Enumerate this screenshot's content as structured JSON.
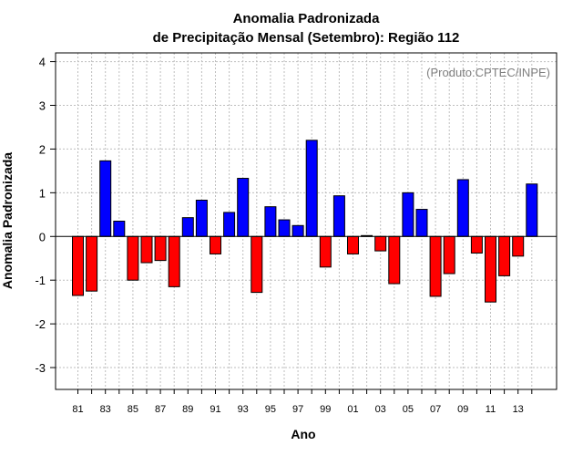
{
  "chart_data": {
    "type": "bar",
    "title": [
      "Anomalia Padronizada",
      "de Precipitação Mensal (Setembro): Região 112"
    ],
    "xlabel": "Ano",
    "ylabel": "Anomalia Padronizada",
    "credit": "(Produto:CPTEC/INPE)",
    "ylim": [
      -3.5,
      4.2
    ],
    "yticks": [
      -3,
      -2,
      -1,
      0,
      1,
      2,
      3,
      4
    ],
    "xtick_labels": [
      "81",
      "83",
      "85",
      "87",
      "89",
      "91",
      "93",
      "95",
      "97",
      "99",
      "01",
      "03",
      "05",
      "07",
      "09",
      "11",
      "13"
    ],
    "categories": [
      "1981",
      "1982",
      "1983",
      "1984",
      "1985",
      "1986",
      "1987",
      "1988",
      "1989",
      "1990",
      "1991",
      "1992",
      "1993",
      "1994",
      "1995",
      "1996",
      "1997",
      "1998",
      "1999",
      "2000",
      "2001",
      "2002",
      "2003",
      "2004",
      "2005",
      "2006",
      "2007",
      "2008",
      "2009",
      "2010",
      "2011",
      "2012",
      "2013",
      "2014"
    ],
    "values": [
      -1.35,
      -1.25,
      1.73,
      0.35,
      -1.0,
      -0.6,
      -0.55,
      -1.15,
      0.43,
      0.83,
      -0.4,
      0.55,
      1.33,
      -1.28,
      0.68,
      0.38,
      0.25,
      2.2,
      -0.7,
      0.93,
      -0.4,
      0.02,
      -0.33,
      -1.08,
      1.0,
      0.62,
      -1.37,
      -0.85,
      1.3,
      -0.38,
      -1.5,
      -0.9,
      -0.45,
      1.2
    ],
    "colors": {
      "positive": "#0000ff",
      "negative": "#ff0000",
      "grid": "#bebebe"
    },
    "grid": true
  }
}
